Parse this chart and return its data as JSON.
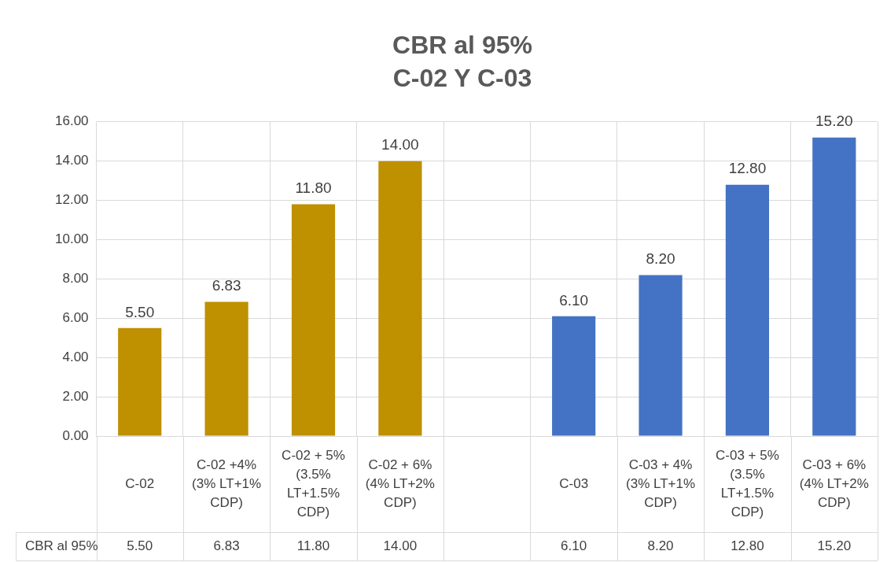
{
  "chart_data": {
    "type": "bar",
    "title": "CBR al 95%",
    "subtitle": "C-02 Y C-03",
    "categories": [
      "C-02",
      "C-02 +4% (3% LT+1% CDP)",
      "C-02 + 5% (3.5% LT+1.5% CDP)",
      "C-02 + 6% (4% LT+2% CDP)",
      null,
      "C-03",
      "C-03 + 4% (3% LT+1% CDP)",
      "C-03 + 5% (3.5% LT+1.5% CDP)",
      "C-03 + 6% (4% LT+2% CDP)"
    ],
    "series": [
      {
        "name": "CBR al 95%",
        "values": [
          5.5,
          6.83,
          11.8,
          14,
          null,
          6.1,
          8.2,
          12.8,
          15.2
        ],
        "colors": [
          "#bf9000",
          "#bf9000",
          "#bf9000",
          "#bf9000",
          "#bf9000",
          "#4472c4",
          "#4472c4",
          "#4472c4",
          "#4472c4"
        ],
        "value_labels": [
          "5.50",
          "6.83",
          "11.80",
          "14.00",
          null,
          "6.10",
          "8.20",
          "12.80",
          "15.20"
        ]
      }
    ],
    "ylim": [
      0,
      16
    ],
    "yticks": [
      {
        "value": 0,
        "label": "0.00"
      },
      {
        "value": 2,
        "label": "2.00"
      },
      {
        "value": 4,
        "label": "4.00"
      },
      {
        "value": 6,
        "label": "6.00"
      },
      {
        "value": 8,
        "label": "8.00"
      },
      {
        "value": 10,
        "label": "10.00"
      },
      {
        "value": 12,
        "label": "12.00"
      },
      {
        "value": 14,
        "label": "14.00"
      },
      {
        "value": 16,
        "label": "16.00"
      }
    ],
    "grid": true
  }
}
